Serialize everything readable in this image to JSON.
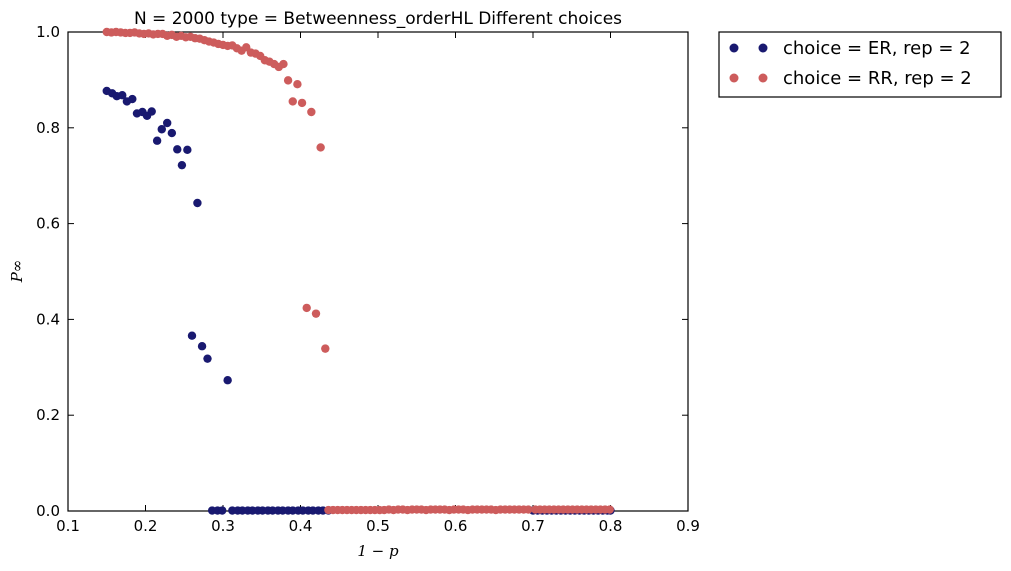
{
  "chart_data": {
    "type": "scatter",
    "title": "N = 2000 type = Betweenness_orderHL Different choices",
    "xlabel": "1 − p",
    "ylabel": "P∞",
    "xlim": [
      0.1,
      0.9
    ],
    "ylim": [
      0.0,
      1.0
    ],
    "x_ticks": [
      "0.1",
      "0.2",
      "0.3",
      "0.4",
      "0.5",
      "0.6",
      "0.7",
      "0.8",
      "0.9"
    ],
    "y_ticks": [
      "0.0",
      "0.2",
      "0.4",
      "0.6",
      "0.8",
      "1.0"
    ],
    "grid": false,
    "legend_position": "outside-top-right",
    "series": [
      {
        "name": "choice = ER, rep = 2",
        "color": "#191970",
        "points": [
          [
            0.15,
            0.877
          ],
          [
            0.157,
            0.872
          ],
          [
            0.163,
            0.866
          ],
          [
            0.17,
            0.868
          ],
          [
            0.176,
            0.855
          ],
          [
            0.183,
            0.86
          ],
          [
            0.189,
            0.83
          ],
          [
            0.196,
            0.833
          ],
          [
            0.202,
            0.825
          ],
          [
            0.208,
            0.834
          ],
          [
            0.215,
            0.773
          ],
          [
            0.221,
            0.797
          ],
          [
            0.228,
            0.81
          ],
          [
            0.234,
            0.789
          ],
          [
            0.241,
            0.755
          ],
          [
            0.247,
            0.722
          ],
          [
            0.254,
            0.754
          ],
          [
            0.26,
            0.366
          ],
          [
            0.267,
            0.643
          ],
          [
            0.273,
            0.344
          ],
          [
            0.28,
            0.318
          ],
          [
            0.286,
            0.001
          ],
          [
            0.293,
            0.001
          ],
          [
            0.299,
            0.001
          ],
          [
            0.306,
            0.273
          ],
          [
            0.312,
            0.001
          ],
          [
            0.319,
            0.001
          ],
          [
            0.325,
            0.001
          ],
          [
            0.332,
            0.001
          ],
          [
            0.338,
            0.001
          ],
          [
            0.345,
            0.001
          ],
          [
            0.351,
            0.001
          ],
          [
            0.358,
            0.001
          ],
          [
            0.364,
            0.001
          ],
          [
            0.371,
            0.001
          ],
          [
            0.377,
            0.001
          ],
          [
            0.384,
            0.001
          ],
          [
            0.39,
            0.001
          ],
          [
            0.397,
            0.001
          ],
          [
            0.403,
            0.001
          ],
          [
            0.41,
            0.001
          ],
          [
            0.416,
            0.001
          ],
          [
            0.423,
            0.001
          ],
          [
            0.429,
            0.001
          ],
          [
            0.436,
            0.001
          ],
          [
            0.7,
            0.001
          ],
          [
            0.706,
            0.001
          ],
          [
            0.712,
            0.001
          ],
          [
            0.718,
            0.001
          ],
          [
            0.724,
            0.001
          ],
          [
            0.73,
            0.001
          ],
          [
            0.736,
            0.001
          ],
          [
            0.742,
            0.001
          ],
          [
            0.748,
            0.001
          ],
          [
            0.754,
            0.001
          ],
          [
            0.76,
            0.001
          ],
          [
            0.766,
            0.001
          ],
          [
            0.772,
            0.001
          ],
          [
            0.778,
            0.001
          ],
          [
            0.784,
            0.001
          ],
          [
            0.79,
            0.001
          ],
          [
            0.796,
            0.001
          ],
          [
            0.8,
            0.001
          ]
        ]
      },
      {
        "name": "choice = RR, rep = 2",
        "color": "#cd5c5c",
        "points": [
          [
            0.15,
            1.0
          ],
          [
            0.156,
            0.999
          ],
          [
            0.162,
            1.0
          ],
          [
            0.168,
            0.999
          ],
          [
            0.174,
            0.998
          ],
          [
            0.18,
            0.998
          ],
          [
            0.186,
            0.999
          ],
          [
            0.192,
            0.997
          ],
          [
            0.198,
            0.996
          ],
          [
            0.204,
            0.997
          ],
          [
            0.21,
            0.995
          ],
          [
            0.216,
            0.996
          ],
          [
            0.222,
            0.996
          ],
          [
            0.228,
            0.992
          ],
          [
            0.234,
            0.994
          ],
          [
            0.24,
            0.99
          ],
          [
            0.246,
            0.992
          ],
          [
            0.252,
            0.989
          ],
          [
            0.258,
            0.99
          ],
          [
            0.264,
            0.987
          ],
          [
            0.27,
            0.986
          ],
          [
            0.276,
            0.983
          ],
          [
            0.282,
            0.98
          ],
          [
            0.288,
            0.978
          ],
          [
            0.294,
            0.975
          ],
          [
            0.3,
            0.973
          ],
          [
            0.306,
            0.971
          ],
          [
            0.312,
            0.972
          ],
          [
            0.318,
            0.966
          ],
          [
            0.324,
            0.961
          ],
          [
            0.33,
            0.968
          ],
          [
            0.336,
            0.957
          ],
          [
            0.342,
            0.955
          ],
          [
            0.348,
            0.95
          ],
          [
            0.354,
            0.941
          ],
          [
            0.36,
            0.938
          ],
          [
            0.366,
            0.933
          ],
          [
            0.372,
            0.927
          ],
          [
            0.378,
            0.933
          ],
          [
            0.384,
            0.899
          ],
          [
            0.39,
            0.855
          ],
          [
            0.396,
            0.891
          ],
          [
            0.402,
            0.852
          ],
          [
            0.408,
            0.424
          ],
          [
            0.414,
            0.833
          ],
          [
            0.42,
            0.412
          ],
          [
            0.426,
            0.759
          ],
          [
            0.432,
            0.339
          ],
          [
            0.436,
            0.002
          ],
          [
            0.442,
            0.002
          ],
          [
            0.448,
            0.002
          ],
          [
            0.454,
            0.002
          ],
          [
            0.46,
            0.002
          ],
          [
            0.466,
            0.002
          ],
          [
            0.472,
            0.002
          ],
          [
            0.478,
            0.002
          ],
          [
            0.484,
            0.002
          ],
          [
            0.49,
            0.002
          ],
          [
            0.496,
            0.002
          ],
          [
            0.502,
            0.002
          ],
          [
            0.508,
            0.002
          ],
          [
            0.514,
            0.003
          ],
          [
            0.52,
            0.002
          ],
          [
            0.526,
            0.003
          ],
          [
            0.532,
            0.003
          ],
          [
            0.538,
            0.002
          ],
          [
            0.544,
            0.003
          ],
          [
            0.55,
            0.003
          ],
          [
            0.556,
            0.003
          ],
          [
            0.562,
            0.002
          ],
          [
            0.568,
            0.003
          ],
          [
            0.574,
            0.003
          ],
          [
            0.58,
            0.003
          ],
          [
            0.586,
            0.003
          ],
          [
            0.592,
            0.002
          ],
          [
            0.598,
            0.003
          ],
          [
            0.604,
            0.003
          ],
          [
            0.61,
            0.003
          ],
          [
            0.616,
            0.002
          ],
          [
            0.622,
            0.003
          ],
          [
            0.628,
            0.003
          ],
          [
            0.634,
            0.003
          ],
          [
            0.64,
            0.003
          ],
          [
            0.646,
            0.003
          ],
          [
            0.652,
            0.002
          ],
          [
            0.658,
            0.003
          ],
          [
            0.664,
            0.003
          ],
          [
            0.67,
            0.003
          ],
          [
            0.676,
            0.003
          ],
          [
            0.682,
            0.003
          ],
          [
            0.688,
            0.003
          ],
          [
            0.694,
            0.003
          ],
          [
            0.703,
            0.003
          ],
          [
            0.709,
            0.003
          ],
          [
            0.715,
            0.003
          ],
          [
            0.721,
            0.003
          ],
          [
            0.727,
            0.003
          ],
          [
            0.733,
            0.003
          ],
          [
            0.739,
            0.003
          ],
          [
            0.745,
            0.003
          ],
          [
            0.751,
            0.003
          ],
          [
            0.757,
            0.003
          ],
          [
            0.763,
            0.003
          ],
          [
            0.769,
            0.003
          ],
          [
            0.775,
            0.003
          ],
          [
            0.781,
            0.003
          ],
          [
            0.787,
            0.003
          ],
          [
            0.793,
            0.003
          ],
          [
            0.799,
            0.003
          ]
        ]
      }
    ]
  }
}
